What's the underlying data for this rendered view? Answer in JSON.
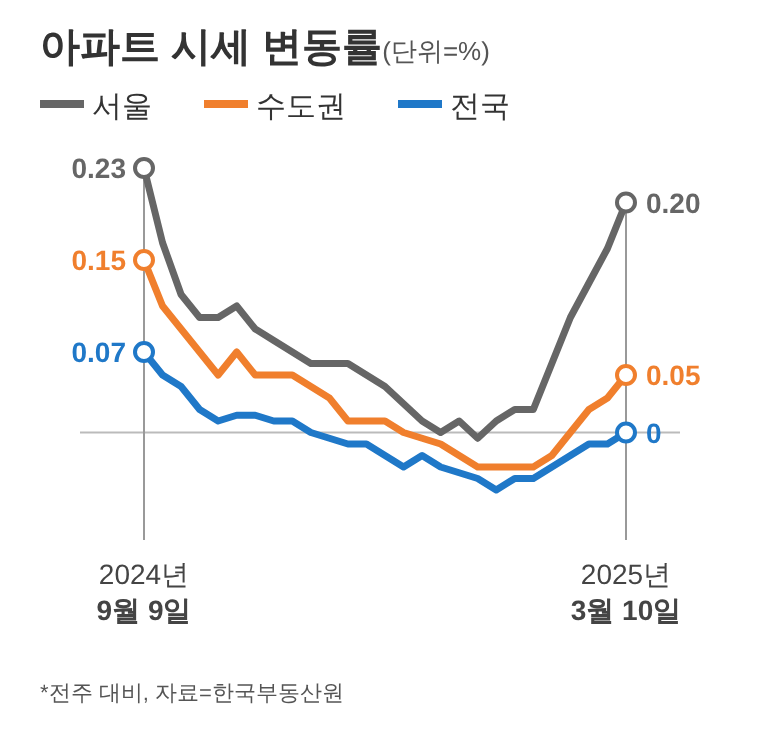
{
  "chart_data": {
    "type": "line",
    "title": "아파트 시세 변동률",
    "subtitle": "(단위=%)",
    "categories": [
      "2024년\n9월 9일",
      null,
      null,
      null,
      null,
      null,
      null,
      null,
      null,
      null,
      null,
      null,
      null,
      null,
      null,
      null,
      null,
      null,
      null,
      null,
      null,
      null,
      null,
      null,
      null,
      null,
      "2025년\n3월 10일"
    ],
    "series": [
      {
        "name": "서울",
        "color": "#666666",
        "values": [
          0.23,
          0.165,
          0.12,
          0.1,
          0.1,
          0.11,
          0.09,
          0.08,
          0.07,
          0.06,
          0.06,
          0.06,
          0.05,
          0.04,
          0.025,
          0.01,
          0.0,
          0.01,
          -0.005,
          0.01,
          0.02,
          0.02,
          0.06,
          0.1,
          0.13,
          0.16,
          0.2
        ],
        "value_labels": [
          "0.23",
          null,
          null,
          null,
          null,
          null,
          null,
          null,
          null,
          null,
          null,
          null,
          null,
          null,
          null,
          null,
          null,
          null,
          null,
          null,
          null,
          null,
          null,
          null,
          null,
          null,
          "0.20"
        ]
      },
      {
        "name": "수도권",
        "color": "#f07f2d",
        "values": [
          0.15,
          0.11,
          0.09,
          0.07,
          0.05,
          0.07,
          0.05,
          0.05,
          0.05,
          0.04,
          0.03,
          0.01,
          0.01,
          0.01,
          0.0,
          -0.005,
          -0.01,
          -0.02,
          -0.03,
          -0.03,
          -0.03,
          -0.03,
          -0.02,
          0.0,
          0.02,
          0.03,
          0.05
        ],
        "value_labels": [
          "0.15",
          null,
          null,
          null,
          null,
          null,
          null,
          null,
          null,
          null,
          null,
          null,
          null,
          null,
          null,
          null,
          null,
          null,
          null,
          null,
          null,
          null,
          null,
          null,
          null,
          null,
          "0.05"
        ]
      },
      {
        "name": "전국",
        "color": "#1f78c8",
        "values": [
          0.07,
          0.05,
          0.04,
          0.02,
          0.01,
          0.015,
          0.015,
          0.01,
          0.01,
          0.0,
          -0.005,
          -0.01,
          -0.01,
          -0.02,
          -0.03,
          -0.02,
          -0.03,
          -0.035,
          -0.04,
          -0.05,
          -0.04,
          -0.04,
          -0.03,
          -0.02,
          -0.01,
          -0.01,
          0
        ],
        "value_labels": [
          "0.07",
          null,
          null,
          null,
          null,
          null,
          null,
          null,
          null,
          null,
          null,
          null,
          null,
          null,
          null,
          null,
          null,
          null,
          null,
          null,
          null,
          null,
          null,
          null,
          null,
          null,
          "0"
        ]
      }
    ],
    "ref_lines": [
      {
        "axis": "y",
        "value": 0,
        "color": "#bbbbbb"
      }
    ],
    "legend": "top left",
    "line_style": "solid",
    "annotations": [
      "*전주 대비, 자료=한국부동산원"
    ]
  }
}
